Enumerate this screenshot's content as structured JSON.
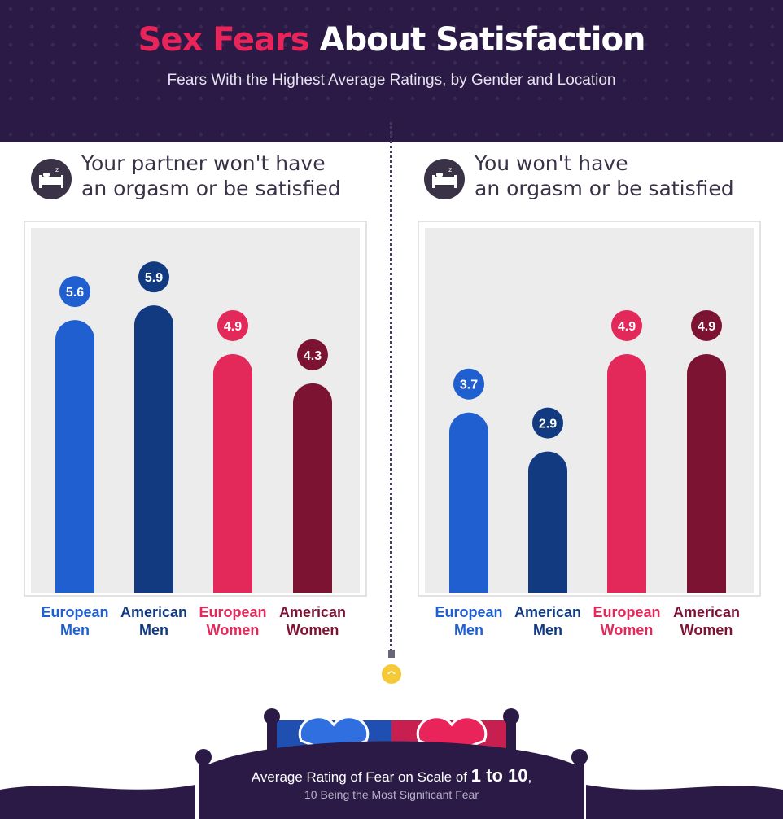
{
  "header": {
    "title_accent": "Sex Fears",
    "title_rest": "About Satisfaction",
    "subtitle": "Fears With the Highest Average Ratings, by Gender and Location"
  },
  "colors": {
    "background_dark": "#2a1a45",
    "european_men": "#1f5fd0",
    "american_men": "#123a80",
    "european_women": "#e3285a",
    "american_women": "#7d1333",
    "plot_bg": "#ececec",
    "panel_text": "#3a3347"
  },
  "icons": {
    "panel_icon": "bed-icon",
    "divider_icon": "lightbulb-icon",
    "footer_icon": "bed-headboard-hearts-icon"
  },
  "chart_data": [
    {
      "type": "bar",
      "title": "Your partner won't have\nan orgasm or be satisfied",
      "categories": [
        "European\nMen",
        "American\nMen",
        "European\nWomen",
        "American\nWomen"
      ],
      "values": [
        5.6,
        5.9,
        4.9,
        4.3
      ],
      "value_labels": [
        "5.6",
        "5.9",
        "4.9",
        "4.3"
      ],
      "ylim": [
        0,
        10
      ],
      "grid": false
    },
    {
      "type": "bar",
      "title": "You won't have\nan orgasm or be satisfied",
      "categories": [
        "European\nMen",
        "American\nMen",
        "European\nWomen",
        "American\nWomen"
      ],
      "values": [
        3.7,
        2.9,
        4.9,
        4.9
      ],
      "value_labels": [
        "3.7",
        "2.9",
        "4.9",
        "4.9"
      ],
      "ylim": [
        0,
        10
      ],
      "grid": false
    }
  ],
  "footer": {
    "line1_prefix": "Average Rating of Fear on Scale of ",
    "line1_emphasis": "1 to 10",
    "line1_suffix": ",",
    "line2": "10 Being the Most Significant Fear"
  }
}
